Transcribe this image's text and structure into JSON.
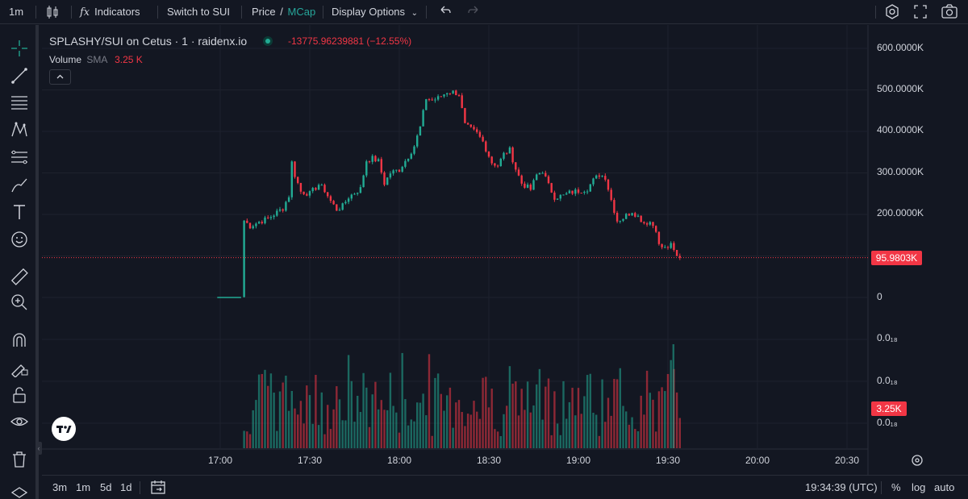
{
  "toolbar": {
    "interval": "1m",
    "indicators_label": "Indicators",
    "switch_label": "Switch to SUI",
    "price_label": "Price",
    "slash": "/",
    "mcap_label": "MCap",
    "display_options_label": "Display Options"
  },
  "legend": {
    "title": "SPLASHY/SUI on Cetus · 1 · raidenx.io",
    "change": "-13775.96239881 (−12.55%)",
    "volume_label": "Volume",
    "sma_label": "SMA",
    "volume_value": "3.25 K"
  },
  "price_axis": {
    "labels": [
      "600.0000K",
      "500.0000K",
      "400.0000K",
      "300.0000K",
      "200.0000K",
      "0"
    ],
    "current_price": "95.9803K"
  },
  "volume_axis": {
    "labels": [
      "0.0₁₈",
      "0.0₁₈",
      "0.0₁₈"
    ],
    "current_volume": "3.25K"
  },
  "time_axis": {
    "labels": [
      "17:00",
      "17:30",
      "18:00",
      "18:30",
      "19:00",
      "19:30",
      "20:00",
      "20:30"
    ]
  },
  "bottom": {
    "ranges": [
      "3m",
      "1m",
      "5d",
      "1d"
    ],
    "clock": "19:34:39 (UTC)",
    "percent_label": "%",
    "log_label": "log",
    "auto_label": "auto"
  },
  "colors": {
    "up": "#22ab94",
    "down": "#f23645",
    "background": "#131722",
    "grid": "#1e222d"
  },
  "chart_data": {
    "type": "candlestick",
    "title": "SPLASHY/SUI on Cetus · 1 · raidenx.io",
    "x_start": "17:00",
    "x_end": "19:35",
    "interval": "1m",
    "ylim": [
      0,
      600000
    ],
    "close_series": [
      {
        "t": "17:07",
        "v": 1000
      },
      {
        "t": "17:08",
        "v": 185000
      },
      {
        "t": "17:10",
        "v": 172000
      },
      {
        "t": "17:13",
        "v": 182000
      },
      {
        "t": "17:16",
        "v": 190000
      },
      {
        "t": "17:19",
        "v": 205000
      },
      {
        "t": "17:21",
        "v": 215000
      },
      {
        "t": "17:23",
        "v": 245000
      },
      {
        "t": "17:24",
        "v": 325000
      },
      {
        "t": "17:25",
        "v": 295000
      },
      {
        "t": "17:27",
        "v": 255000
      },
      {
        "t": "17:30",
        "v": 250000
      },
      {
        "t": "17:33",
        "v": 272000
      },
      {
        "t": "17:35",
        "v": 258000
      },
      {
        "t": "17:37",
        "v": 232000
      },
      {
        "t": "17:39",
        "v": 212000
      },
      {
        "t": "17:41",
        "v": 220000
      },
      {
        "t": "17:43",
        "v": 242000
      },
      {
        "t": "17:45",
        "v": 252000
      },
      {
        "t": "17:47",
        "v": 262000
      },
      {
        "t": "17:49",
        "v": 330000
      },
      {
        "t": "17:51",
        "v": 335000
      },
      {
        "t": "17:53",
        "v": 328000
      },
      {
        "t": "17:55",
        "v": 275000
      },
      {
        "t": "17:57",
        "v": 300000
      },
      {
        "t": "18:00",
        "v": 308000
      },
      {
        "t": "18:03",
        "v": 340000
      },
      {
        "t": "18:05",
        "v": 365000
      },
      {
        "t": "18:07",
        "v": 410000
      },
      {
        "t": "18:09",
        "v": 480000
      },
      {
        "t": "18:11",
        "v": 475000
      },
      {
        "t": "18:13",
        "v": 480000
      },
      {
        "t": "18:16",
        "v": 495000
      },
      {
        "t": "18:18",
        "v": 495000
      },
      {
        "t": "18:20",
        "v": 490000
      },
      {
        "t": "18:22",
        "v": 415000
      },
      {
        "t": "18:24",
        "v": 405000
      },
      {
        "t": "18:26",
        "v": 395000
      },
      {
        "t": "18:28",
        "v": 375000
      },
      {
        "t": "18:31",
        "v": 325000
      },
      {
        "t": "18:33",
        "v": 318000
      },
      {
        "t": "18:35",
        "v": 345000
      },
      {
        "t": "18:37",
        "v": 355000
      },
      {
        "t": "18:39",
        "v": 310000
      },
      {
        "t": "18:41",
        "v": 275000
      },
      {
        "t": "18:44",
        "v": 260000
      },
      {
        "t": "18:46",
        "v": 295000
      },
      {
        "t": "18:48",
        "v": 305000
      },
      {
        "t": "18:50",
        "v": 270000
      },
      {
        "t": "18:52",
        "v": 242000
      },
      {
        "t": "18:55",
        "v": 245000
      },
      {
        "t": "18:57",
        "v": 252000
      },
      {
        "t": "19:00",
        "v": 257000
      },
      {
        "t": "19:03",
        "v": 262000
      },
      {
        "t": "19:05",
        "v": 282000
      },
      {
        "t": "19:07",
        "v": 296000
      },
      {
        "t": "19:09",
        "v": 290000
      },
      {
        "t": "19:11",
        "v": 235000
      },
      {
        "t": "19:13",
        "v": 185000
      },
      {
        "t": "19:15",
        "v": 192000
      },
      {
        "t": "19:18",
        "v": 208000
      },
      {
        "t": "19:20",
        "v": 195000
      },
      {
        "t": "19:22",
        "v": 180000
      },
      {
        "t": "19:24",
        "v": 182000
      },
      {
        "t": "19:26",
        "v": 165000
      },
      {
        "t": "19:27",
        "v": 125000
      },
      {
        "t": "19:29",
        "v": 118000
      },
      {
        "t": "19:31",
        "v": 125000
      },
      {
        "t": "19:33",
        "v": 98000
      },
      {
        "t": "19:34",
        "v": 95980
      }
    ],
    "current_price_line": 95980,
    "volume_label": "Volume",
    "volume_current": "3.25K"
  }
}
